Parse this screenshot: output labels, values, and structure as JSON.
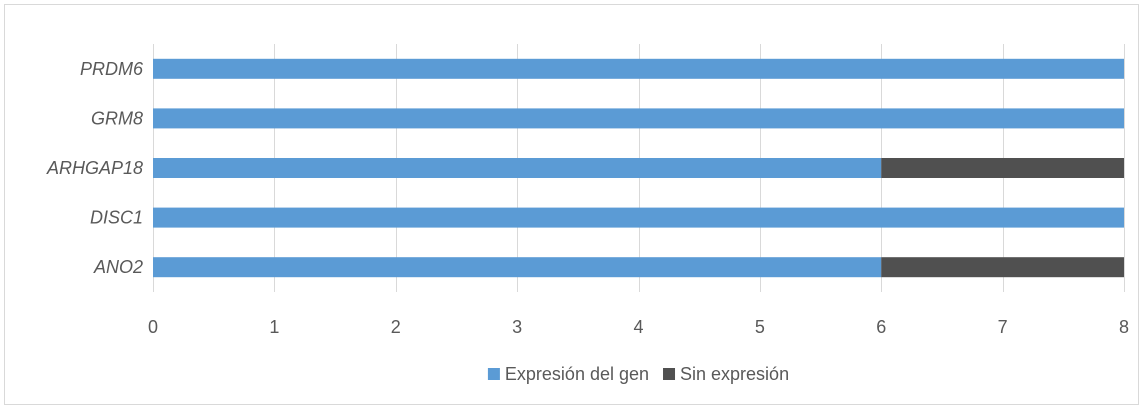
{
  "chart_data": {
    "type": "bar",
    "orientation": "horizontal",
    "stacked": true,
    "categories": [
      "PRDM6",
      "GRM8",
      "ARHGAP18",
      "DISC1",
      "ANO2"
    ],
    "series": [
      {
        "name": "Expresión del gen",
        "color": "#5b9bd5",
        "values": [
          8,
          8,
          6,
          8,
          6
        ]
      },
      {
        "name": "Sin expresión",
        "color": "#505050",
        "values": [
          0,
          0,
          2,
          0,
          2
        ]
      }
    ],
    "xlim": [
      0,
      8
    ],
    "xticks": [
      "0",
      "1",
      "2",
      "3",
      "4",
      "5",
      "6",
      "7",
      "8"
    ],
    "grid": true,
    "legend_position": "bottom"
  }
}
